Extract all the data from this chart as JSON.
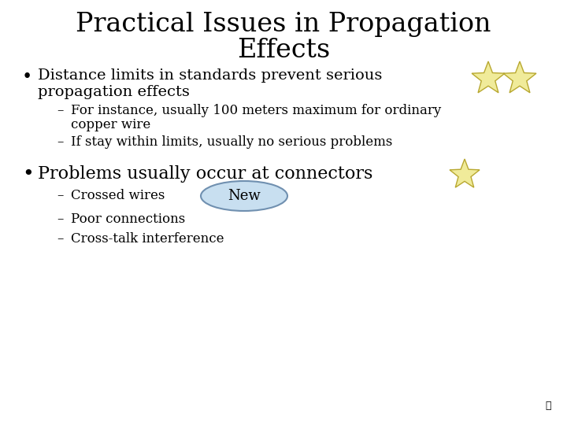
{
  "background_color": "#ffffff",
  "title_line1": "Practical Issues in Propagation",
  "title_line2": "Effects",
  "title_fontsize": 24,
  "title_font": "serif",
  "bullet1": "Distance limits in standards prevent serious",
  "bullet1b": "propagation effects",
  "sub1a_line1": "For instance, usually 100 meters maximum for ordinary",
  "sub1a_line2": "copper wire",
  "sub1b": "If stay within limits, usually no serious problems",
  "bullet2": "Problems usually occur at connectors",
  "sub2a": "Crossed wires",
  "sub2b": "Poor connections",
  "sub2c": "Cross-talk interference",
  "new_label": "New",
  "text_color": "#000000",
  "star_fill": "#f0eb9a",
  "star_edge": "#b8a830",
  "new_ellipse_fill": "#c8dff0",
  "new_ellipse_edge": "#7090b0",
  "body_fontsize": 14,
  "sub_fontsize": 12,
  "new_fontsize": 13
}
